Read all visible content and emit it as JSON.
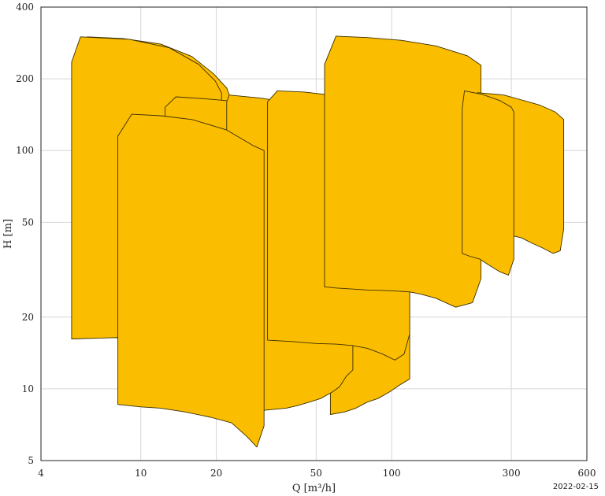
{
  "date_stamp": "2022-02-15",
  "chart_data": {
    "type": "area",
    "title": "",
    "xlabel": "Q [m³/h]",
    "ylabel": "H [m]",
    "xscale": "log",
    "yscale": "log",
    "xlim": [
      4,
      600
    ],
    "ylim": [
      5,
      400
    ],
    "x_ticks": [
      {
        "value": 4,
        "label": "4"
      },
      {
        "value": 10,
        "label": "10"
      },
      {
        "value": 20,
        "label": "20"
      },
      {
        "value": 50,
        "label": "50"
      },
      {
        "value": 100,
        "label": "100"
      },
      {
        "value": 300,
        "label": "300"
      },
      {
        "value": 600,
        "label": "600"
      }
    ],
    "y_ticks": [
      {
        "value": 5,
        "label": "5"
      },
      {
        "value": 10,
        "label": "10"
      },
      {
        "value": 20,
        "label": "20"
      },
      {
        "value": 50,
        "label": "50"
      },
      {
        "value": 100,
        "label": "100"
      },
      {
        "value": 200,
        "label": "200"
      },
      {
        "value": 400,
        "label": "400"
      }
    ],
    "grid": true,
    "fill_color": "#FBBD00",
    "edge_color": "#3a2e00",
    "series": [
      {
        "points": [
          [
            6.12,
            300
          ],
          [
            8.5,
            295
          ],
          [
            12,
            280
          ],
          [
            16,
            248
          ],
          [
            19.5,
            210
          ],
          [
            22,
            183
          ],
          [
            22.6,
            170
          ],
          [
            22.6,
            25
          ],
          [
            20,
            21
          ],
          [
            15.5,
            18
          ],
          [
            11,
            16.8
          ],
          [
            8,
            16.4
          ],
          [
            6.12,
            16.5
          ]
        ]
      },
      {
        "points": [
          [
            5.3,
            235
          ],
          [
            5.75,
            300
          ],
          [
            9,
            293
          ],
          [
            13,
            270
          ],
          [
            17,
            230
          ],
          [
            19.8,
            196
          ],
          [
            21,
            174
          ],
          [
            21,
            24
          ],
          [
            18.5,
            20.5
          ],
          [
            14,
            18
          ],
          [
            9.5,
            16.5
          ],
          [
            5.3,
            16.2
          ]
        ]
      },
      {
        "points": [
          [
            57,
            120
          ],
          [
            64,
            135
          ],
          [
            72,
            140
          ],
          [
            82,
            142
          ],
          [
            95,
            140
          ],
          [
            105,
            137
          ],
          [
            115,
            135
          ],
          [
            118,
            130
          ],
          [
            118,
            11
          ],
          [
            108,
            10.4
          ],
          [
            98,
            9.7
          ],
          [
            88,
            9.1
          ],
          [
            80,
            8.8
          ],
          [
            72,
            8.3
          ],
          [
            65,
            8
          ],
          [
            57,
            7.8
          ]
        ]
      },
      {
        "points": [
          [
            12.5,
            152
          ],
          [
            13.8,
            168
          ],
          [
            18,
            165
          ],
          [
            25,
            160
          ],
          [
            35,
            150
          ],
          [
            45,
            138
          ],
          [
            52,
            128
          ],
          [
            52,
            11
          ],
          [
            48,
            10
          ],
          [
            42,
            9.4
          ],
          [
            36,
            9.1
          ],
          [
            30,
            8.9
          ],
          [
            25,
            8.7
          ],
          [
            21,
            8.7
          ],
          [
            18,
            8.5
          ],
          [
            15,
            8.4
          ],
          [
            12.5,
            8.3
          ]
        ]
      },
      {
        "points": [
          [
            22,
            160
          ],
          [
            22.5,
            171
          ],
          [
            30,
            166
          ],
          [
            45,
            155
          ],
          [
            58,
            140
          ],
          [
            68,
            125
          ],
          [
            70,
            120
          ],
          [
            70,
            12
          ],
          [
            66,
            11.3
          ],
          [
            62,
            10.2
          ],
          [
            58,
            9.7
          ],
          [
            52,
            9.1
          ],
          [
            47,
            8.8
          ],
          [
            42,
            8.5
          ],
          [
            38,
            8.3
          ],
          [
            30,
            8.1
          ],
          [
            22,
            8.0
          ]
        ]
      },
      {
        "points": [
          [
            32,
            160
          ],
          [
            35,
            178
          ],
          [
            45,
            176
          ],
          [
            65,
            168
          ],
          [
            85,
            160
          ],
          [
            105,
            151
          ],
          [
            118,
            141
          ],
          [
            118,
            17
          ],
          [
            112,
            14
          ],
          [
            103,
            13.2
          ],
          [
            92,
            14
          ],
          [
            80,
            14.8
          ],
          [
            70,
            15.2
          ],
          [
            60,
            15.4
          ],
          [
            50,
            15.5
          ],
          [
            40,
            15.8
          ],
          [
            32,
            16
          ]
        ]
      },
      {
        "points": [
          [
            54,
            230
          ],
          [
            60,
            302
          ],
          [
            80,
            298
          ],
          [
            110,
            290
          ],
          [
            150,
            275
          ],
          [
            200,
            250
          ],
          [
            227,
            228
          ],
          [
            227,
            29
          ],
          [
            210,
            23
          ],
          [
            180,
            22
          ],
          [
            150,
            24
          ],
          [
            130,
            25
          ],
          [
            118,
            25.5
          ],
          [
            100,
            25.8
          ],
          [
            80,
            26
          ],
          [
            60,
            26.5
          ],
          [
            54,
            26.8
          ]
        ]
      },
      {
        "points": [
          [
            208,
            148
          ],
          [
            220,
            175
          ],
          [
            280,
            171
          ],
          [
            330,
            163
          ],
          [
            390,
            155
          ],
          [
            450,
            145
          ],
          [
            485,
            135
          ],
          [
            485,
            47
          ],
          [
            470,
            38
          ],
          [
            440,
            37
          ],
          [
            400,
            39
          ],
          [
            360,
            41
          ],
          [
            330,
            43
          ],
          [
            300,
            44
          ],
          [
            270,
            45
          ],
          [
            250,
            46
          ],
          [
            208,
            48
          ]
        ]
      },
      {
        "points": [
          [
            191,
            150
          ],
          [
            195,
            178
          ],
          [
            230,
            172
          ],
          [
            270,
            162
          ],
          [
            300,
            152
          ],
          [
            307,
            145
          ],
          [
            307,
            35
          ],
          [
            292,
            30
          ],
          [
            270,
            31
          ],
          [
            245,
            33
          ],
          [
            225,
            35
          ],
          [
            205,
            36
          ],
          [
            191,
            37
          ]
        ]
      },
      {
        "points": [
          [
            8.1,
            115
          ],
          [
            9.2,
            142
          ],
          [
            12,
            140
          ],
          [
            16,
            135
          ],
          [
            22,
            122
          ],
          [
            28,
            105
          ],
          [
            31,
            100
          ],
          [
            31,
            7
          ],
          [
            29,
            5.7
          ],
          [
            26.5,
            6.3
          ],
          [
            23,
            7.2
          ],
          [
            19,
            7.6
          ],
          [
            15,
            8.0
          ],
          [
            12,
            8.3
          ],
          [
            10,
            8.4
          ],
          [
            8.1,
            8.6
          ]
        ]
      }
    ]
  }
}
